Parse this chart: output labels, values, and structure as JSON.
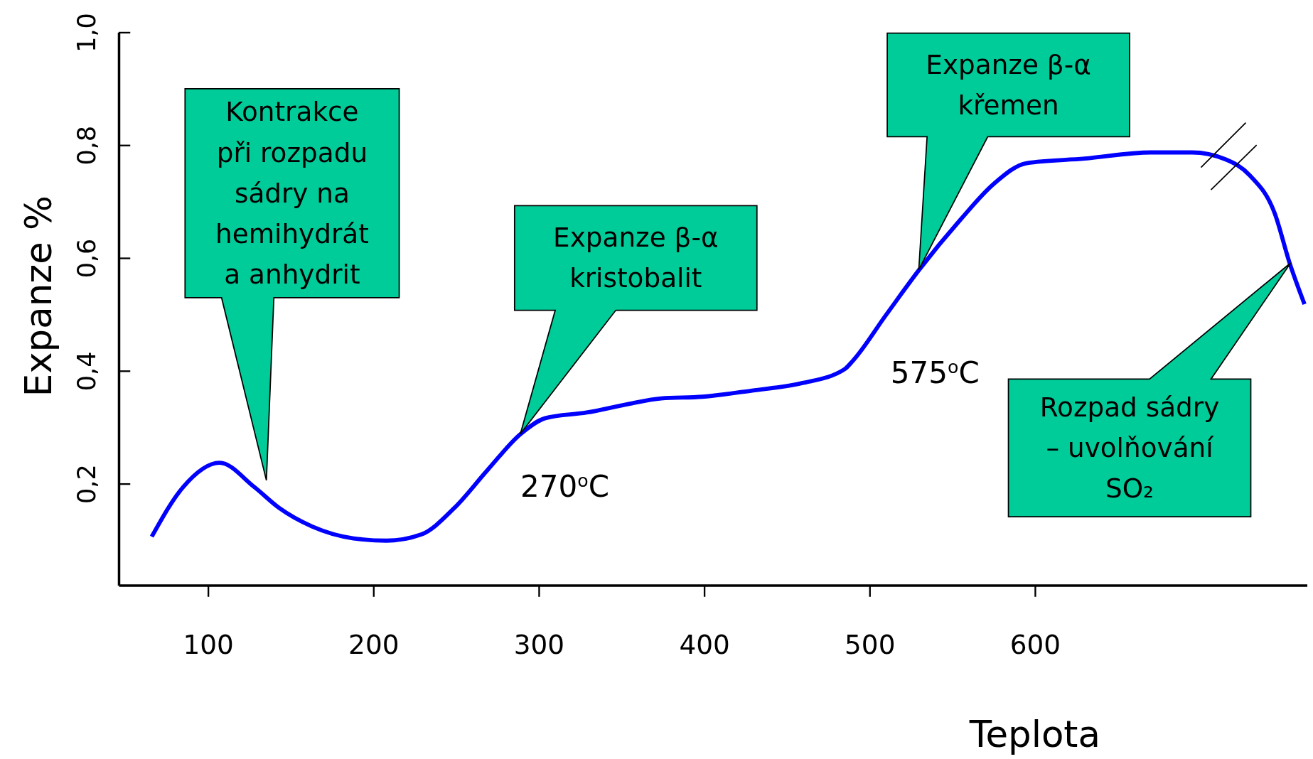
{
  "chart_data": {
    "type": "line",
    "xlabel": "Teplota",
    "ylabel": "Expanze %",
    "xlim": [
      46,
      765
    ],
    "ylim": [
      0.02,
      1.0
    ],
    "xticks": [
      100,
      200,
      300,
      400,
      500,
      600
    ],
    "yticks": [
      {
        "value": 0.2,
        "label": "0,2"
      },
      {
        "value": 0.4,
        "label": "0,4"
      },
      {
        "value": 0.6,
        "label": "0,6"
      },
      {
        "value": 0.8,
        "label": "0,8"
      },
      {
        "value": 1.0,
        "label": "1,0"
      }
    ],
    "grid": false,
    "marker": "none",
    "line_style": "solid",
    "series": [
      {
        "color": "#0000ff",
        "x": [
          66,
          85,
          107,
          128,
          143,
          163,
          188,
          208,
          229,
          249,
          269,
          289,
          304,
          329,
          354,
          374,
          399,
          429,
          459,
          485,
          490,
          510,
          530,
          555,
          575,
          595,
          630,
          670,
          695,
          715,
          730,
          745,
          754,
          763
        ],
        "values": [
          0.106,
          0.194,
          0.237,
          0.194,
          0.157,
          0.124,
          0.103,
          0.099,
          0.11,
          0.157,
          0.224,
          0.288,
          0.316,
          0.326,
          0.341,
          0.351,
          0.354,
          0.365,
          0.378,
          0.403,
          0.418,
          0.499,
          0.579,
          0.668,
          0.731,
          0.768,
          0.776,
          0.787,
          0.787,
          0.775,
          0.746,
          0.679,
          0.591,
          0.518
        ]
      }
    ],
    "annotations": [
      "Kontrakce\npři rozpadu\nsádry na\nhemihydrát\na anhydrit",
      "Expanze β-α\nkristobalit",
      "Expanze β-α\nkřemen",
      "Rozpad sádry\n– uvolňování\nSO₂",
      "270$^{o}$C",
      "575$^{o}$C"
    ]
  }
}
